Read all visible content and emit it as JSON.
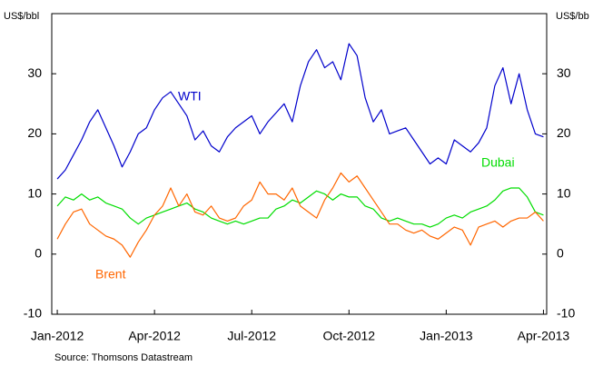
{
  "chart_data": {
    "type": "line",
    "y_label_left": "US$/bbl",
    "y_label_right": "US$/bb",
    "source": "Source: Thomsons Datastream",
    "x": [
      0,
      0.25,
      0.5,
      0.75,
      1,
      1.25,
      1.5,
      1.75,
      2,
      2.25,
      2.5,
      2.75,
      3,
      3.25,
      3.5,
      3.75,
      4,
      4.25,
      4.5,
      4.75,
      5,
      5.25,
      5.5,
      5.75,
      6,
      6.25,
      6.5,
      6.75,
      7,
      7.25,
      7.5,
      7.75,
      8,
      8.25,
      8.5,
      8.75,
      9,
      9.25,
      9.5,
      9.75,
      10,
      10.25,
      10.5,
      10.75,
      11,
      11.25,
      11.5,
      11.75,
      12,
      12.25,
      12.5,
      12.75,
      13,
      13.25,
      13.5,
      13.75,
      14,
      14.25,
      14.5,
      14.75,
      15
    ],
    "xlim": [
      -0.17,
      15.1
    ],
    "xticks": [
      {
        "value": 0,
        "label": "Jan-2012"
      },
      {
        "value": 3,
        "label": "Apr-2012"
      },
      {
        "value": 6,
        "label": "Jul-2012"
      },
      {
        "value": 9,
        "label": "Oct-2012"
      },
      {
        "value": 12,
        "label": "Jan-2013"
      },
      {
        "value": 15,
        "label": "Apr-2013"
      }
    ],
    "ylim": [
      -10,
      40
    ],
    "yticks": [
      -10,
      0,
      10,
      20,
      30
    ],
    "y2lim": [
      -10,
      40
    ],
    "y2ticks": [
      -10,
      0,
      10,
      20,
      30
    ],
    "series": [
      {
        "name": "WTI",
        "color": "#0000cc",
        "values": [
          12.5,
          14,
          16.5,
          19,
          22,
          24,
          21,
          18,
          14.5,
          17,
          20,
          21,
          24,
          26,
          27,
          25,
          23,
          19,
          20.5,
          18,
          17,
          19.5,
          21,
          22,
          23,
          20,
          22,
          23.5,
          25,
          22,
          28,
          32,
          34,
          31,
          32,
          29,
          35,
          33,
          26,
          22,
          24,
          20,
          20.5,
          21,
          19,
          17,
          15,
          16,
          15,
          19,
          18,
          17,
          18.5,
          21,
          28,
          31,
          25,
          30,
          24,
          20,
          19.5
        ]
      },
      {
        "name": "Dubai",
        "color": "#00dd00",
        "values": [
          8,
          9.5,
          9,
          10,
          9,
          9.5,
          8.5,
          8,
          7.5,
          6,
          5,
          6,
          6.5,
          7,
          7.5,
          8,
          8.5,
          7.5,
          7,
          6,
          5.5,
          5,
          5.5,
          5,
          5.5,
          6,
          6,
          7.5,
          8,
          9,
          8.5,
          9.5,
          10.5,
          10,
          9,
          10,
          9.5,
          9.5,
          8,
          7.5,
          6,
          5.5,
          6,
          5.5,
          5,
          5,
          4.5,
          5,
          6,
          6.5,
          6,
          7,
          7.5,
          8,
          9,
          10.5,
          11,
          11,
          9.5,
          7,
          6.5
        ]
      },
      {
        "name": "Brent",
        "color": "#ff6600",
        "values": [
          2.5,
          5,
          7,
          7.5,
          5,
          4,
          3,
          2.5,
          1.5,
          -0.5,
          2,
          4,
          6.5,
          8,
          11,
          8,
          10,
          7,
          6.5,
          8,
          6,
          5.5,
          6,
          8,
          9,
          12,
          10,
          10,
          9,
          11,
          8,
          7,
          6,
          9,
          11,
          13.5,
          12,
          13,
          11,
          9,
          7,
          5,
          5,
          4,
          3.5,
          4,
          3,
          2.5,
          3.5,
          4.5,
          4,
          1.5,
          4.5,
          5,
          5.5,
          4.5,
          5.5,
          6,
          6,
          7,
          5.5
        ]
      }
    ]
  }
}
